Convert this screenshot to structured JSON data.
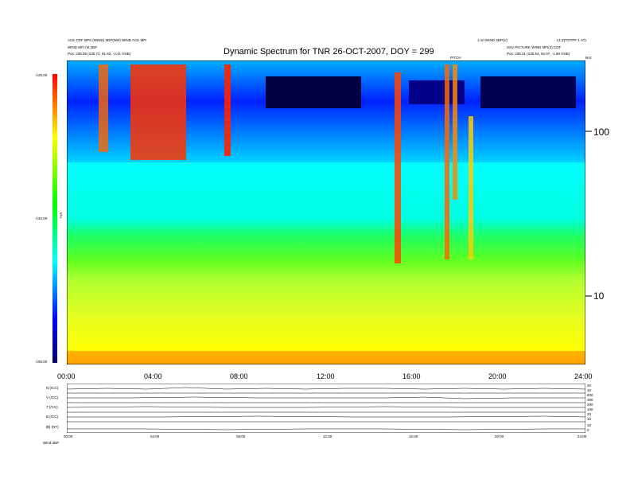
{
  "header": {
    "left_line1": "ACE CDF BPS (WIND) 3DP(NW)  WIND ACE MFI",
    "left_line2": "WIND MFI h0 3DP",
    "left_line3": "Pos:  235.05 (235.72, 91.83, -2.41 GSE)",
    "right_line1": "1.10 WIND 3DP(V)",
    "right_line1b": "L1:Z(TOTPF 1 AT)",
    "right_line2": "SSV PICTURE WIND MFI(3) CDF",
    "right_line3": "Pos:  235.21 (235.54, 92.07, -1.80 GSE)",
    "mid_small": "PITCH",
    "khz_label": "kHz"
  },
  "chart_data": {
    "type": "heatmap",
    "title": "Dynamic Spectrum for TNR 26-OCT-2007, DOY = 299",
    "x_ticks": [
      "00:00",
      "04:00",
      "08:00",
      "12:00",
      "16:00",
      "20:00",
      "24:00"
    ],
    "x_range_hours": [
      0,
      24
    ],
    "y_scale": "log",
    "y_unit": "kHz",
    "y_range": [
      4,
      300
    ],
    "y_ticks": [
      {
        "label": "100",
        "value": 100
      },
      {
        "label": "10",
        "value": 10
      }
    ],
    "colorbar": {
      "label": "TNR",
      "ticks": [
        {
          "label": "-125.00",
          "value": -125
        },
        {
          "label": "-140.00",
          "value": -140
        },
        {
          "label": "-155.00",
          "value": -155
        }
      ],
      "range": [
        -155,
        -125
      ],
      "colors": [
        "#000066",
        "#0000ff",
        "#00ffff",
        "#00ff00",
        "#ffff00",
        "#ff0000"
      ]
    },
    "panels": [
      {
        "label": "N (/CC)",
        "right_ticks": [
          "20",
          "10"
        ]
      },
      {
        "label": "V (/CC)",
        "right_ticks": [
          "600",
          "300"
        ]
      },
      {
        "label": "T (/CC)",
        "right_ticks": [
          "200",
          "100"
        ]
      },
      {
        "label": "B (/CC)",
        "right_ticks": [
          "20",
          "10"
        ]
      },
      {
        "label": "|B| (NT)",
        "right_ticks": [
          "10",
          "0"
        ]
      }
    ],
    "bottom_ticks": [
      "00:00",
      "04:00",
      "08:00",
      "12:00",
      "16:00",
      "20:00",
      "24:00"
    ],
    "bottom_left_label": "Wind   3DP"
  }
}
